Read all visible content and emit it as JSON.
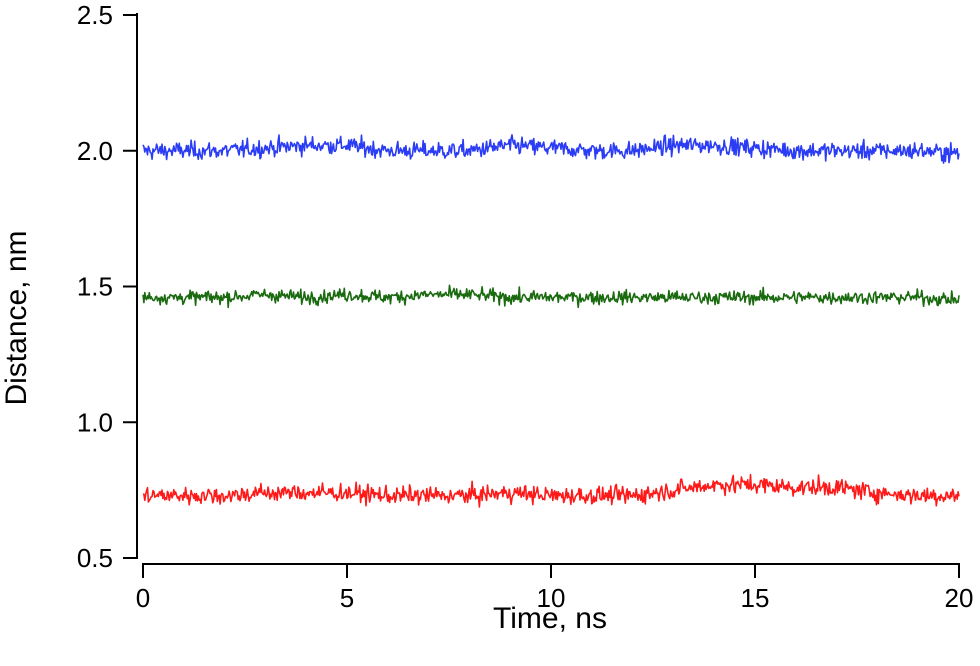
{
  "chart_data": {
    "type": "line",
    "title": "",
    "xlabel": "Time, ns",
    "ylabel": "Distance, nm",
    "xlim": [
      0,
      20
    ],
    "ylim": [
      0.5,
      2.5
    ],
    "x_ticks": [
      0,
      5,
      10,
      15,
      20
    ],
    "x_tick_labels": [
      "0",
      "5",
      "10",
      "15",
      "20"
    ],
    "y_ticks": [
      0.5,
      1.0,
      1.5,
      2.0,
      2.5
    ],
    "y_tick_labels": [
      "0.5",
      "1.0",
      "1.5",
      "2.0",
      "2.5"
    ],
    "grid": false,
    "legend": false,
    "noise_amplitude": 0.025,
    "series": [
      {
        "color": "#2b3cf5",
        "x": [
          0,
          1,
          2,
          3,
          4,
          5,
          6,
          7,
          8,
          9,
          10,
          11,
          12,
          13,
          14,
          15,
          16,
          17,
          18,
          19,
          20
        ],
        "values": [
          2.0,
          2.0,
          2.0,
          2.01,
          2.02,
          2.02,
          2.0,
          2.0,
          2.0,
          2.02,
          2.01,
          2.0,
          2.0,
          2.02,
          2.02,
          2.01,
          2.0,
          2.0,
          2.0,
          2.0,
          1.99
        ]
      },
      {
        "color": "#1a6b10",
        "x": [
          0,
          1,
          2,
          3,
          4,
          5,
          6,
          7,
          8,
          9,
          10,
          11,
          12,
          13,
          14,
          15,
          16,
          17,
          18,
          19,
          20
        ],
        "values": [
          1.46,
          1.46,
          1.46,
          1.47,
          1.46,
          1.47,
          1.46,
          1.47,
          1.47,
          1.46,
          1.46,
          1.46,
          1.46,
          1.46,
          1.46,
          1.46,
          1.46,
          1.46,
          1.46,
          1.46,
          1.45
        ]
      },
      {
        "color": "#ff1a1a",
        "x": [
          0,
          1,
          2,
          3,
          4,
          5,
          6,
          7,
          8,
          9,
          10,
          11,
          12,
          13,
          14,
          15,
          16,
          17,
          18,
          19,
          20
        ],
        "values": [
          0.73,
          0.73,
          0.73,
          0.74,
          0.74,
          0.74,
          0.73,
          0.73,
          0.73,
          0.74,
          0.73,
          0.73,
          0.73,
          0.75,
          0.77,
          0.77,
          0.76,
          0.76,
          0.74,
          0.73,
          0.73
        ]
      }
    ]
  }
}
